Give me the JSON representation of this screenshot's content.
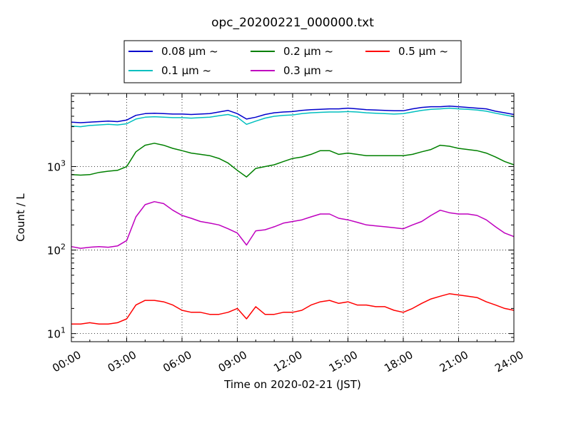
{
  "chart_data": {
    "type": "line",
    "title": "opc_20200221_000000.txt",
    "xlabel": "Time on 2020-02-21 (JST)",
    "ylabel": "Count / L",
    "yscale": "log",
    "ylim": [
      8,
      7500
    ],
    "xlim": [
      "00:00",
      "24:00"
    ],
    "x_ticks": [
      "00:00",
      "03:00",
      "06:00",
      "09:00",
      "12:00",
      "15:00",
      "18:00",
      "21:00",
      "24:00"
    ],
    "y_ticks": [
      {
        "base": "10",
        "exp": "1",
        "value": 10
      },
      {
        "base": "10",
        "exp": "2",
        "value": 100
      },
      {
        "base": "10",
        "exp": "3",
        "value": 1000
      }
    ],
    "grid": true,
    "legend": {
      "placement": "top-center"
    },
    "x": [
      "00:00",
      "00:30",
      "01:00",
      "01:30",
      "02:00",
      "02:30",
      "03:00",
      "03:30",
      "04:00",
      "04:30",
      "05:00",
      "05:30",
      "06:00",
      "06:30",
      "07:00",
      "07:30",
      "08:00",
      "08:30",
      "09:00",
      "09:30",
      "10:00",
      "10:30",
      "11:00",
      "11:30",
      "12:00",
      "12:30",
      "13:00",
      "13:30",
      "14:00",
      "14:30",
      "15:00",
      "15:30",
      "16:00",
      "16:30",
      "17:00",
      "17:30",
      "18:00",
      "18:30",
      "19:00",
      "19:30",
      "20:00",
      "20:30",
      "21:00",
      "21:30",
      "22:00",
      "22:30",
      "23:00",
      "23:30",
      "24:00"
    ],
    "series": [
      {
        "name": "0.08 μm ~",
        "color": "#0000cc",
        "values": [
          3400,
          3350,
          3400,
          3450,
          3500,
          3450,
          3600,
          4100,
          4300,
          4350,
          4300,
          4250,
          4250,
          4200,
          4250,
          4300,
          4500,
          4700,
          4300,
          3700,
          3900,
          4200,
          4400,
          4500,
          4550,
          4700,
          4800,
          4850,
          4900,
          4900,
          5000,
          4900,
          4800,
          4750,
          4700,
          4650,
          4650,
          4900,
          5100,
          5200,
          5200,
          5300,
          5200,
          5100,
          5000,
          4900,
          4600,
          4400,
          4200
        ]
      },
      {
        "name": "0.1 μm ~",
        "color": "#00bfbf",
        "values": [
          3050,
          3000,
          3100,
          3150,
          3200,
          3150,
          3250,
          3700,
          3900,
          3950,
          3900,
          3850,
          3850,
          3800,
          3850,
          3900,
          4050,
          4200,
          3900,
          3200,
          3500,
          3800,
          4000,
          4100,
          4150,
          4300,
          4400,
          4450,
          4500,
          4500,
          4550,
          4500,
          4400,
          4350,
          4300,
          4250,
          4300,
          4500,
          4700,
          4850,
          4900,
          5000,
          4900,
          4850,
          4750,
          4600,
          4350,
          4150,
          3950
        ]
      },
      {
        "name": "0.2 μm ~",
        "color": "#008000",
        "values": [
          800,
          790,
          800,
          850,
          880,
          900,
          1000,
          1500,
          1800,
          1900,
          1800,
          1650,
          1550,
          1450,
          1400,
          1350,
          1250,
          1100,
          900,
          750,
          950,
          1000,
          1050,
          1150,
          1250,
          1300,
          1400,
          1550,
          1550,
          1400,
          1450,
          1400,
          1350,
          1350,
          1350,
          1350,
          1350,
          1400,
          1500,
          1600,
          1800,
          1750,
          1650,
          1600,
          1550,
          1450,
          1300,
          1150,
          1050
        ]
      },
      {
        "name": "0.3 μm ~",
        "color": "#bf00bf",
        "values": [
          110,
          105,
          108,
          110,
          108,
          112,
          130,
          250,
          350,
          380,
          360,
          300,
          260,
          240,
          220,
          210,
          200,
          180,
          160,
          115,
          170,
          175,
          190,
          210,
          220,
          230,
          250,
          270,
          270,
          240,
          230,
          215,
          200,
          195,
          190,
          185,
          180,
          200,
          220,
          260,
          300,
          280,
          270,
          270,
          260,
          230,
          190,
          160,
          145
        ]
      },
      {
        "name": "0.5 μm ~",
        "color": "#ff0000",
        "values": [
          13,
          13,
          13.5,
          13,
          13,
          13.5,
          15,
          22,
          25,
          25,
          24,
          22,
          19,
          18,
          18,
          17,
          17,
          18,
          20,
          15,
          21,
          17,
          17,
          18,
          18,
          19,
          22,
          24,
          25,
          23,
          24,
          22,
          22,
          21,
          21,
          19,
          18,
          20,
          23,
          26,
          28,
          30,
          29,
          28,
          27,
          24,
          22,
          20,
          19
        ]
      }
    ]
  }
}
